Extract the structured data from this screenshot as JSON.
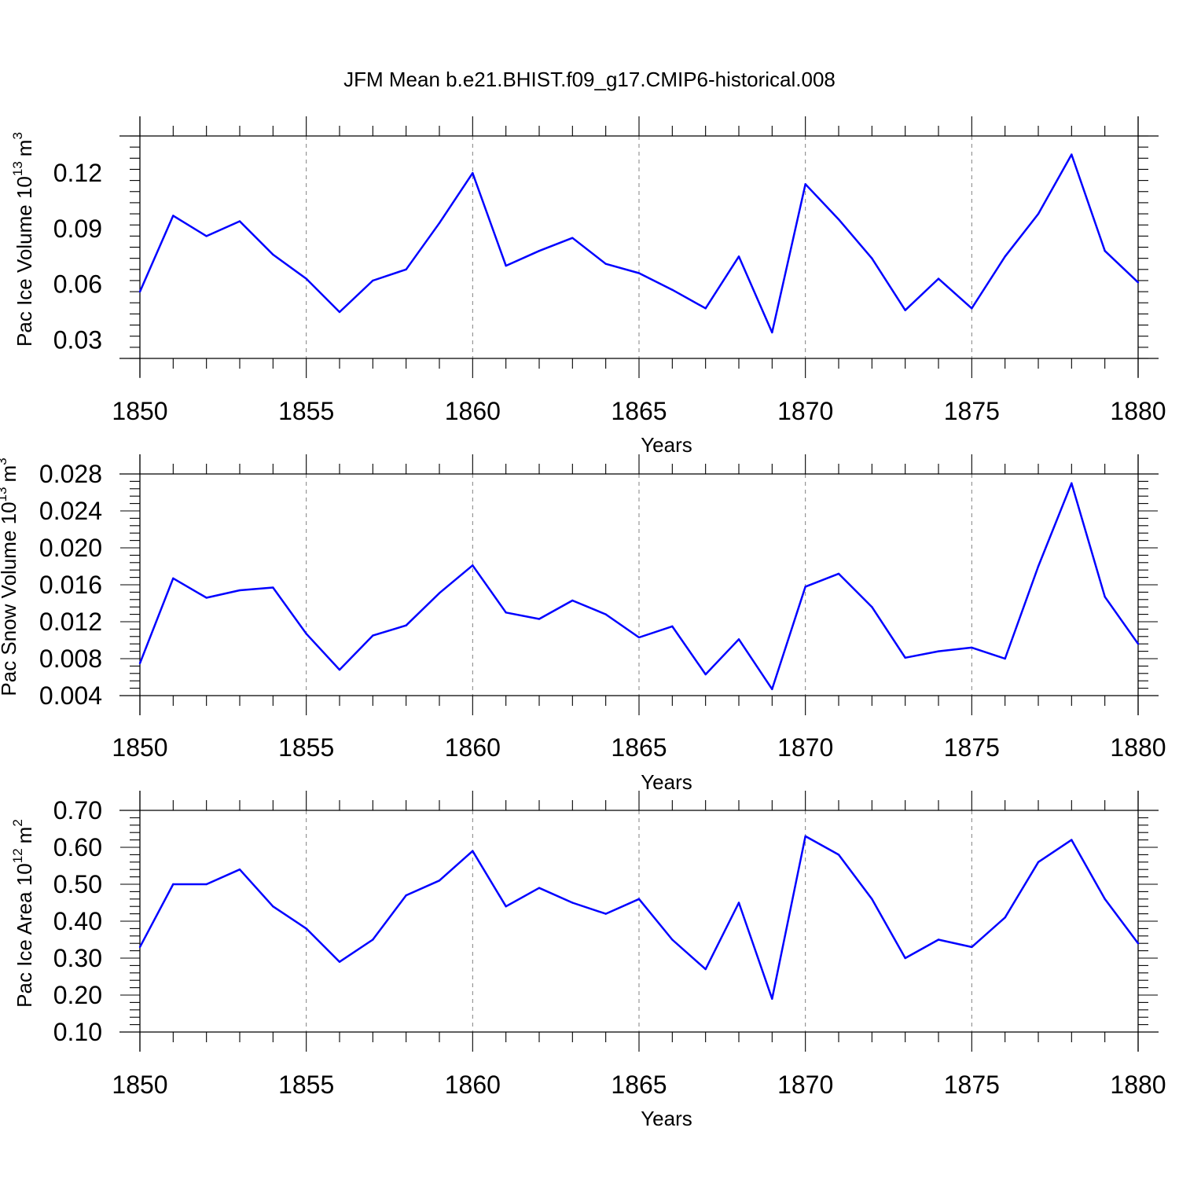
{
  "title": "JFM Mean b.e21.BHIST.f09_g17.CMIP6-historical.008",
  "colors": {
    "line": "#0000ff",
    "axis": "#000000",
    "grid": "#808080"
  },
  "chart_data": [
    {
      "type": "line",
      "title": "",
      "xlabel": "Years",
      "ylabel": "Pac Ice Volume 10",
      "ylabel_sup": "13",
      "ylabel_unit": "m",
      "ylabel_unit_sup": "3",
      "xlim": [
        1850,
        1880
      ],
      "ylim": [
        0.02,
        0.14
      ],
      "xticks": [
        "1850",
        "1855",
        "1860",
        "1865",
        "1870",
        "1875",
        "1880"
      ],
      "yticks": [
        "0.03",
        "0.06",
        "0.09",
        "0.12"
      ],
      "grid": "vertical-dashed",
      "series": [
        {
          "x": [
            1850,
            1851,
            1852,
            1853,
            1854,
            1855,
            1856,
            1857,
            1858,
            1859,
            1860,
            1861,
            1862,
            1863,
            1864,
            1865,
            1866,
            1867,
            1868,
            1869,
            1870,
            1871,
            1872,
            1873,
            1874,
            1875,
            1876,
            1877,
            1878,
            1879,
            1880
          ],
          "y": [
            0.056,
            0.097,
            0.086,
            0.094,
            0.076,
            0.063,
            0.045,
            0.062,
            0.068,
            0.093,
            0.12,
            0.07,
            0.078,
            0.085,
            0.071,
            0.066,
            0.057,
            0.047,
            0.075,
            0.034,
            0.114,
            0.095,
            0.074,
            0.046,
            0.063,
            0.047,
            0.075,
            0.098,
            0.13,
            0.078,
            0.061
          ]
        }
      ]
    },
    {
      "type": "line",
      "title": "",
      "xlabel": "Years",
      "ylabel": "Pac Snow Volume 10",
      "ylabel_sup": "13",
      "ylabel_unit": "m",
      "ylabel_unit_sup": "3",
      "xlim": [
        1850,
        1880
      ],
      "ylim": [
        0.004,
        0.028
      ],
      "xticks": [
        "1850",
        "1855",
        "1860",
        "1865",
        "1870",
        "1875",
        "1880"
      ],
      "yticks": [
        "0.004",
        "0.008",
        "0.012",
        "0.016",
        "0.020",
        "0.024",
        "0.028"
      ],
      "grid": "vertical-dashed",
      "series": [
        {
          "x": [
            1850,
            1851,
            1852,
            1853,
            1854,
            1855,
            1856,
            1857,
            1858,
            1859,
            1860,
            1861,
            1862,
            1863,
            1864,
            1865,
            1866,
            1867,
            1868,
            1869,
            1870,
            1871,
            1872,
            1873,
            1874,
            1875,
            1876,
            1877,
            1878,
            1879,
            1880
          ],
          "y": [
            0.0075,
            0.0167,
            0.0146,
            0.0154,
            0.0157,
            0.0107,
            0.0068,
            0.0105,
            0.0116,
            0.0151,
            0.0181,
            0.013,
            0.0123,
            0.0143,
            0.0128,
            0.0103,
            0.0115,
            0.0063,
            0.0101,
            0.0047,
            0.0158,
            0.0172,
            0.0136,
            0.0081,
            0.0088,
            0.0092,
            0.008,
            0.018,
            0.027,
            0.0147,
            0.0096
          ]
        }
      ]
    },
    {
      "type": "line",
      "title": "",
      "xlabel": "Years",
      "ylabel": "Pac Ice Area 10",
      "ylabel_sup": "12",
      "ylabel_unit": "m",
      "ylabel_unit_sup": "2",
      "xlim": [
        1850,
        1880
      ],
      "ylim": [
        0.1,
        0.7
      ],
      "xticks": [
        "1850",
        "1855",
        "1860",
        "1865",
        "1870",
        "1875",
        "1880"
      ],
      "yticks": [
        "0.10",
        "0.20",
        "0.30",
        "0.40",
        "0.50",
        "0.60",
        "0.70"
      ],
      "grid": "vertical-dashed",
      "series": [
        {
          "x": [
            1850,
            1851,
            1852,
            1853,
            1854,
            1855,
            1856,
            1857,
            1858,
            1859,
            1860,
            1861,
            1862,
            1863,
            1864,
            1865,
            1866,
            1867,
            1868,
            1869,
            1870,
            1871,
            1872,
            1873,
            1874,
            1875,
            1876,
            1877,
            1878,
            1879,
            1880
          ],
          "y": [
            0.33,
            0.5,
            0.5,
            0.54,
            0.44,
            0.38,
            0.29,
            0.35,
            0.47,
            0.51,
            0.59,
            0.44,
            0.49,
            0.45,
            0.42,
            0.46,
            0.35,
            0.27,
            0.45,
            0.19,
            0.63,
            0.58,
            0.46,
            0.3,
            0.35,
            0.33,
            0.41,
            0.56,
            0.62,
            0.46,
            0.34
          ]
        }
      ]
    }
  ]
}
